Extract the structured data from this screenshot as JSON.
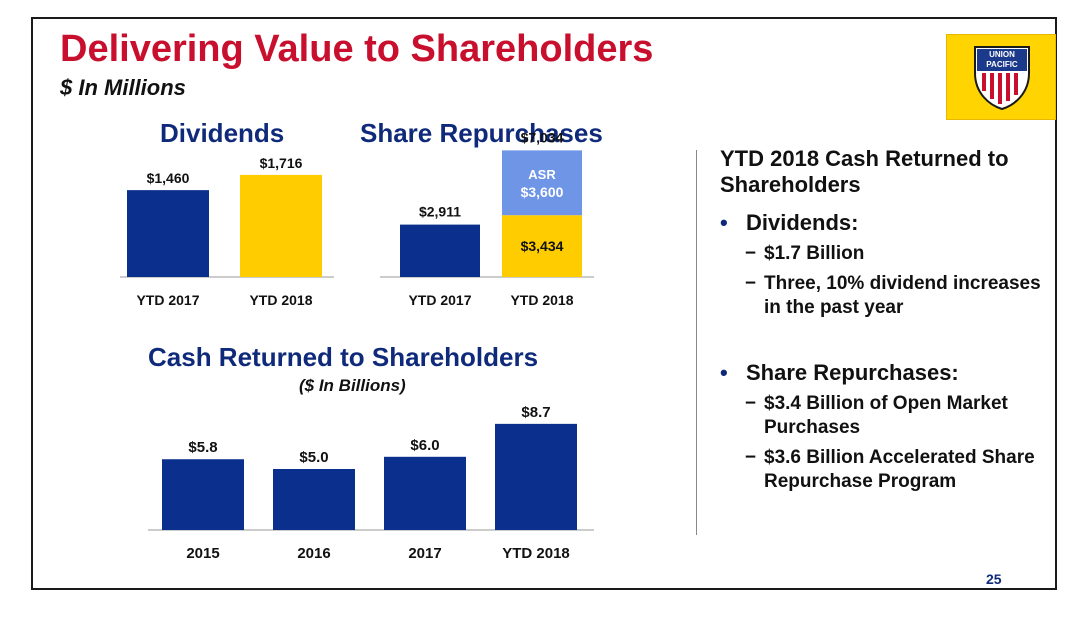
{
  "header": {
    "title": "Delivering Value to Shareholders",
    "subtitle": "$ In Millions"
  },
  "logo": {
    "top": "UNION",
    "bottom": "PACIFIC"
  },
  "colors": {
    "navy": "#0a2f8c",
    "yellow": "#ffcc00",
    "light_blue": "#6e95e6",
    "title_red": "#c8102e",
    "heading_navy": "#0f2a7a"
  },
  "chart_data": [
    {
      "type": "bar",
      "title": "Dividends",
      "categories": [
        "YTD 2017",
        "YTD 2018"
      ],
      "values": [
        1460,
        1716
      ],
      "labels": [
        "$1,460",
        "$1,716"
      ],
      "colors": [
        "#0a2f8c",
        "#ffcc00"
      ],
      "ylim": [
        0,
        2000
      ]
    },
    {
      "type": "bar",
      "stacked": true,
      "title": "Share Repurchases",
      "categories": [
        "YTD 2017",
        "YTD 2018"
      ],
      "totals": [
        2911,
        7034
      ],
      "total_labels": [
        "$2,911",
        "$7,034"
      ],
      "segments": [
        {
          "category": "YTD 2017",
          "value": 2911,
          "color": "#0a2f8c",
          "label": ""
        },
        {
          "category": "YTD 2018",
          "value": 3434,
          "color": "#ffcc00",
          "label": "$3,434"
        },
        {
          "category": "YTD 2018",
          "value": 3600,
          "color": "#6e95e6",
          "label": "$3,600",
          "name": "ASR"
        }
      ],
      "ylim": [
        0,
        8000
      ]
    },
    {
      "type": "bar",
      "title": "Cash Returned to Shareholders",
      "subtitle": "($ In Billions)",
      "categories": [
        "2015",
        "2016",
        "2017",
        "YTD 2018"
      ],
      "values": [
        5.8,
        5.0,
        6.0,
        8.7
      ],
      "labels": [
        "$5.8",
        "$5.0",
        "$6.0",
        "$8.7"
      ],
      "colors": [
        "#0a2f8c",
        "#0a2f8c",
        "#0a2f8c",
        "#0a2f8c"
      ],
      "ylim": [
        0,
        10
      ]
    }
  ],
  "right_panel": {
    "heading": "YTD 2018 Cash Returned to Shareholders",
    "sections": [
      {
        "bullet": "Dividends:",
        "items": [
          "$1.7 Billion",
          "Three, 10% dividend increases in the past year"
        ]
      },
      {
        "bullet": "Share Repurchases:",
        "items": [
          "$3.4 Billion of Open Market Purchases",
          "$3.6 Billion Accelerated Share Repurchase Program"
        ]
      }
    ]
  },
  "page_number": "25"
}
